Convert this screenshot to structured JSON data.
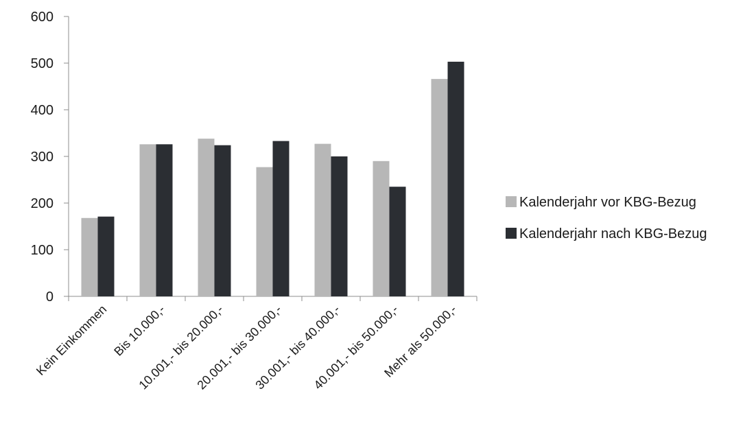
{
  "chart_data": {
    "type": "bar",
    "categories": [
      "Kein Einkommen",
      "Bis 10.000,-",
      "10.001,- bis 20.000,-",
      "20.001,- bis 30.000,-",
      "30.001,- bis 40.000,-",
      "40.001,- bis 50.000,-",
      "Mehr als 50.000,-"
    ],
    "series": [
      {
        "name": "Kalenderjahr vor KBG-Bezug",
        "color": "#b7b7b7",
        "values": [
          168,
          326,
          338,
          277,
          327,
          290,
          466
        ]
      },
      {
        "name": "Kalenderjahr nach KBG-Bezug",
        "color": "#2b2e33",
        "values": [
          171,
          326,
          324,
          333,
          300,
          235,
          503
        ]
      }
    ],
    "ylim": [
      0,
      600
    ],
    "yticks": [
      0,
      100,
      200,
      300,
      400,
      500,
      600
    ],
    "grid": false,
    "legend_position": "right",
    "title": "",
    "xlabel": "",
    "ylabel": ""
  }
}
